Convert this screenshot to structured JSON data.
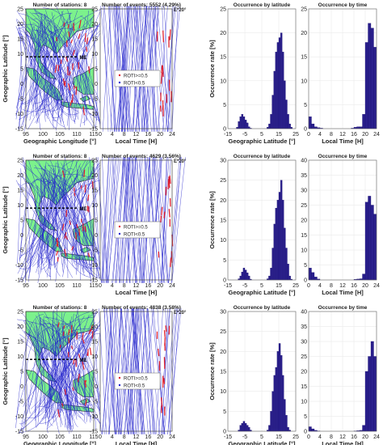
{
  "figure": {
    "map_xlabel": "Geographic Longitude [°]",
    "map_ylabel": "Geographic Latitude [°]",
    "time_xlabel": "Local Time [H]",
    "hist_ylabel": "Occurrence rate [%]",
    "hist_lat_title": "Occurrence by latitude",
    "hist_time_title": "Occurrence by time",
    "hist_lat_xlabel": "Geographic Latitude [°]",
    "hist_time_xlabel": "Local Time [H]",
    "me_label": "ME",
    "e20_label": "E*20°",
    "legend_high": "ROTI>=0.5",
    "legend_low": "ROTI<0.5",
    "colors": {
      "land": "#7CF28C",
      "track": "#2222CC",
      "roti": "#E0202E",
      "bar": "#2A1F8C"
    }
  },
  "rows": [
    {
      "stations_label": "Number of stations: 8",
      "events_label": "Number of events: 5552 (4.29%)"
    },
    {
      "stations_label": "Number of stations: 8",
      "events_label": "Number of events: 4629 (3.56%)"
    },
    {
      "stations_label": "Number of stations: 8",
      "events_label": "Number of events: 4838 (3.58%)"
    }
  ],
  "chart_data": [
    {
      "type": "bar",
      "title": "Occurrence by latitude",
      "xlabel": "Geographic Latitude [°]",
      "ylabel": "Occurrence rate [%]",
      "xlim": [
        -15,
        25
      ],
      "ylim": [
        0,
        25
      ],
      "x": [
        -15,
        -14,
        -13,
        -12,
        -11,
        -10,
        -9,
        -8,
        -7,
        -6,
        -5,
        -4,
        -3,
        -2,
        -1,
        0,
        1,
        2,
        3,
        4,
        5,
        6,
        7,
        8,
        9,
        10,
        11,
        12,
        13,
        14,
        15,
        16,
        17,
        18,
        19,
        20,
        21,
        22,
        23,
        24
      ],
      "values": [
        0,
        0,
        0,
        0,
        0,
        0.3,
        1.5,
        2.5,
        3,
        2.5,
        1.8,
        1.2,
        0.4,
        0.1,
        0,
        0,
        0,
        0,
        0,
        0,
        0,
        0,
        0,
        0.3,
        1,
        3,
        7,
        12,
        16,
        18,
        19,
        20,
        16,
        10,
        6,
        3,
        1,
        0.3,
        0,
        0
      ]
    },
    {
      "type": "bar",
      "title": "Occurrence by time",
      "xlabel": "Local Time [H]",
      "ylabel": "Occurrence rate [%]",
      "xlim": [
        0,
        24
      ],
      "ylim": [
        0,
        25
      ],
      "x": [
        0,
        1,
        2,
        3,
        4,
        5,
        6,
        7,
        8,
        9,
        10,
        11,
        12,
        13,
        14,
        15,
        16,
        17,
        18,
        19,
        20,
        21,
        22,
        23
      ],
      "values": [
        2.5,
        1,
        0.4,
        0.2,
        0.1,
        0,
        0,
        0,
        0,
        0,
        0,
        0,
        0,
        0,
        0,
        0.1,
        0.3,
        0.4,
        0.4,
        3,
        18,
        22,
        21,
        17
      ]
    },
    {
      "type": "bar",
      "title": "Occurrence by latitude",
      "xlabel": "Geographic Latitude [°]",
      "ylabel": "Occurrence rate [%]",
      "xlim": [
        -15,
        25
      ],
      "ylim": [
        0,
        30
      ],
      "x": [
        -15,
        -14,
        -13,
        -12,
        -11,
        -10,
        -9,
        -8,
        -7,
        -6,
        -5,
        -4,
        -3,
        -2,
        -1,
        0,
        1,
        2,
        3,
        4,
        5,
        6,
        7,
        8,
        9,
        10,
        11,
        12,
        13,
        14,
        15,
        16,
        17,
        18,
        19,
        20,
        21,
        22,
        23,
        24
      ],
      "values": [
        0,
        0,
        0,
        0,
        0,
        0,
        0.3,
        1,
        2,
        3,
        2.5,
        1.8,
        1,
        0.2,
        0,
        0,
        0,
        0,
        0,
        0,
        0,
        0,
        0,
        0.3,
        1,
        3,
        8,
        14,
        18,
        20,
        22,
        25,
        20,
        13,
        8,
        4,
        1,
        0.2,
        0,
        0
      ]
    },
    {
      "type": "bar",
      "title": "Occurrence by time",
      "xlabel": "Local Time [H]",
      "ylabel": "Occurrence rate [%]",
      "xlim": [
        0,
        24
      ],
      "ylim": [
        0,
        40
      ],
      "x": [
        0,
        1,
        2,
        3,
        4,
        5,
        6,
        7,
        8,
        9,
        10,
        11,
        12,
        13,
        14,
        15,
        16,
        17,
        18,
        19,
        20,
        21,
        22,
        23
      ],
      "values": [
        4,
        2.5,
        1,
        0.3,
        0,
        0,
        0,
        0,
        0,
        0,
        0,
        0,
        0,
        0,
        0,
        0,
        0.2,
        0.3,
        0.4,
        2,
        26,
        28,
        25,
        22
      ]
    },
    {
      "type": "bar",
      "title": "Occurrence by latitude",
      "xlabel": "Geographic Latitude [°]",
      "ylabel": "Occurrence rate [%]",
      "xlim": [
        -15,
        25
      ],
      "ylim": [
        0,
        30
      ],
      "x": [
        -15,
        -14,
        -13,
        -12,
        -11,
        -10,
        -9,
        -8,
        -7,
        -6,
        -5,
        -4,
        -3,
        -2,
        -1,
        0,
        1,
        2,
        3,
        4,
        5,
        6,
        7,
        8,
        9,
        10,
        11,
        12,
        13,
        14,
        15,
        16,
        17,
        18,
        19,
        20,
        21,
        22,
        23,
        24
      ],
      "values": [
        0,
        0,
        0,
        0,
        0,
        0,
        0.3,
        1.5,
        2,
        2.5,
        2,
        1.5,
        1,
        0.3,
        0,
        0,
        0,
        0,
        0,
        0,
        0,
        0,
        0,
        0.3,
        1.5,
        5,
        10,
        14,
        16,
        20,
        22,
        19,
        14,
        8,
        4,
        1,
        0.3,
        0,
        0,
        0
      ]
    },
    {
      "type": "bar",
      "title": "Occurrence by time",
      "xlabel": "Local Time [H]",
      "ylabel": "Occurrence rate [%]",
      "xlim": [
        0,
        24
      ],
      "ylim": [
        0,
        40
      ],
      "x": [
        0,
        1,
        2,
        3,
        4,
        5,
        6,
        7,
        8,
        9,
        10,
        11,
        12,
        13,
        14,
        15,
        16,
        17,
        18,
        19,
        20,
        21,
        22,
        23
      ],
      "values": [
        1.5,
        0.8,
        0.3,
        0.1,
        0,
        0,
        0,
        0,
        0,
        0,
        0,
        0,
        0,
        0,
        0,
        0,
        0.1,
        0.2,
        0.3,
        2,
        20,
        25,
        30,
        25
      ]
    }
  ]
}
